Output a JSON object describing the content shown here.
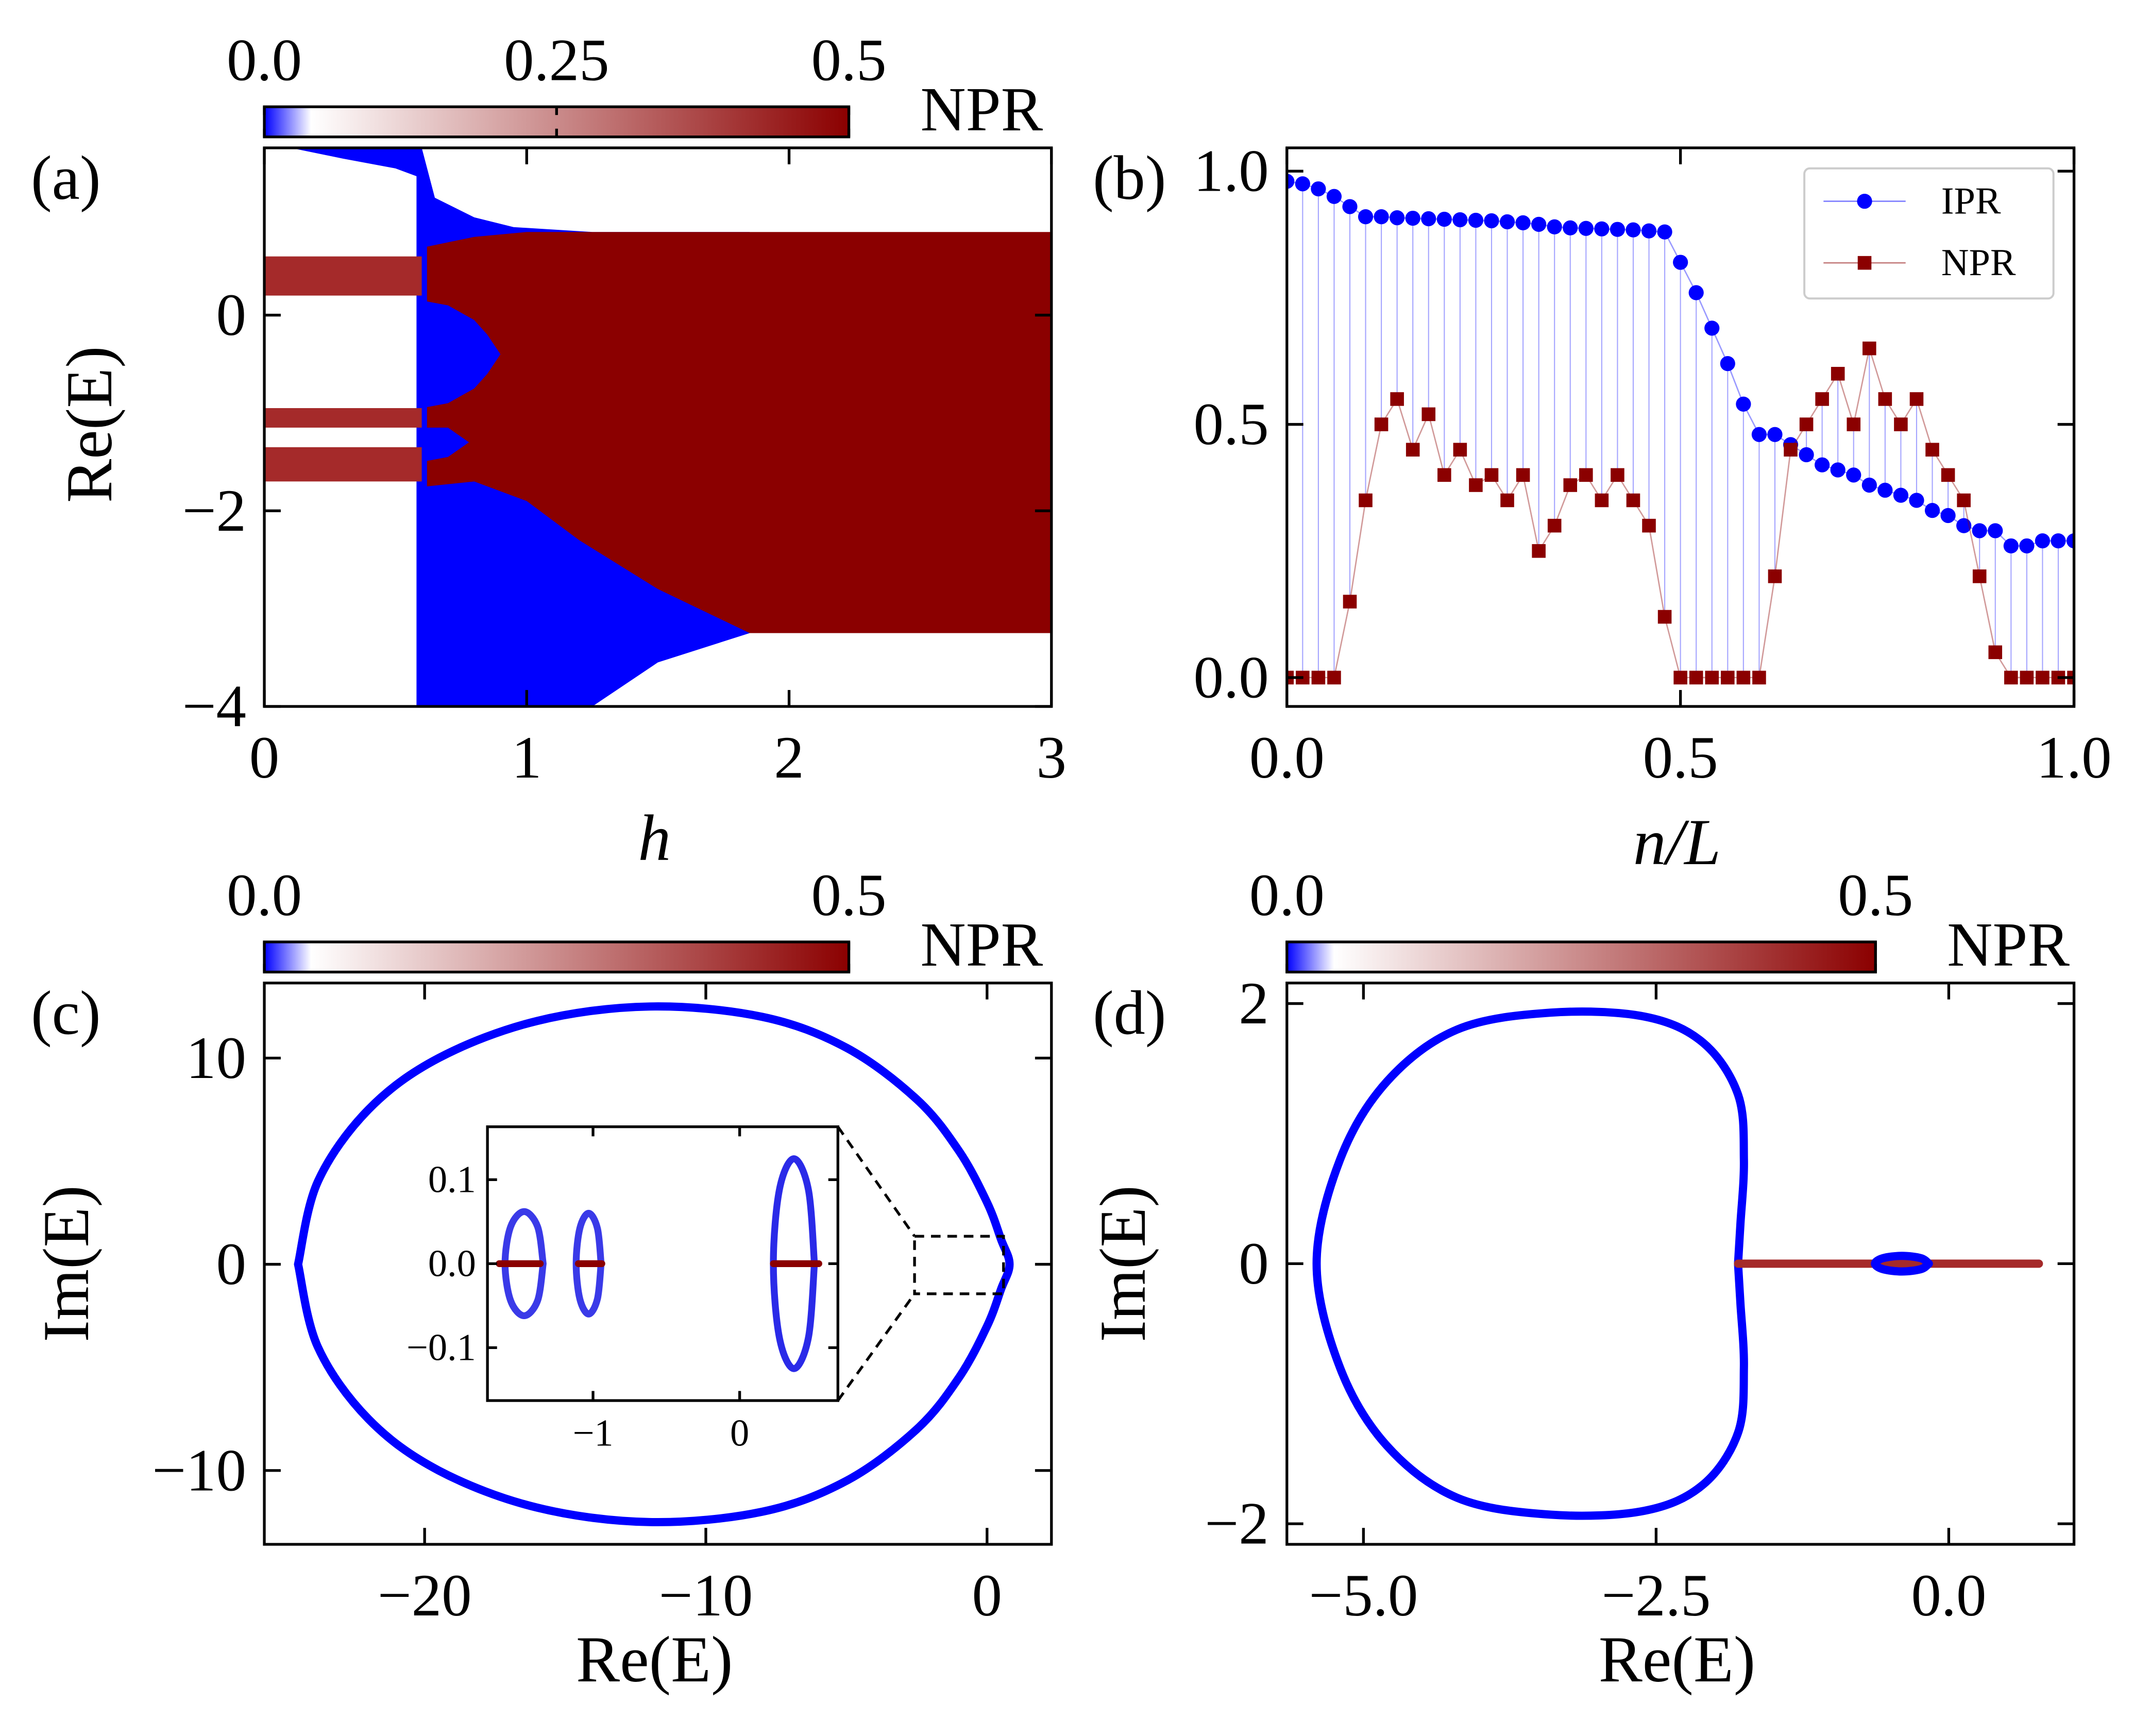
{
  "chart_data": [
    {
      "type": "region",
      "panel": "(a)",
      "xlabel": "h",
      "ylabel": "Re(E)",
      "xlim": [
        0,
        3
      ],
      "ylim": [
        -4,
        1.71
      ],
      "xticks": [
        0,
        1,
        2,
        3
      ],
      "yticks": [
        {
          "value": -4,
          "label": "−4"
        },
        {
          "value": -2,
          "label": "−2"
        },
        0
      ],
      "colorbar": {
        "label": "NPR",
        "lim": [
          0,
          0.5
        ],
        "ticks": [
          {
            "value": 0,
            "label": "0.0"
          },
          0.25,
          0.5
        ],
        "colormap": [
          {
            "value": 0,
            "color": "#0000ff"
          },
          {
            "value": 0.04,
            "color": "#ffffff"
          },
          {
            "value": 0.5,
            "color": "#8b0000"
          }
        ]
      },
      "regions": [
        {
          "color": "#0000ff",
          "x": [
            0.1,
            0.3,
            0.5,
            0.6
          ],
          "upper": [
            1.71,
            1.71,
            1.71,
            1.71
          ],
          "lower": [
            1.71,
            1.6,
            1.5,
            1.4
          ]
        },
        {
          "color": "#0000ff",
          "x": [
            0.58,
            0.6,
            0.65,
            0.8,
            0.95,
            1.25,
            1.5,
            1.85
          ],
          "upper": [
            1.71,
            1.71,
            1.2,
            1.0,
            0.9,
            0.85,
            0.85,
            0.85
          ],
          "lower": [
            -4,
            -4,
            -4,
            -4,
            -4,
            -4,
            -3.55,
            -3.25
          ]
        },
        {
          "color": "#8b0000",
          "x": [
            0.62,
            0.8,
            1.0,
            1.2,
            1.5,
            1.85,
            3
          ],
          "upper": [
            0.7,
            0.8,
            0.85,
            0.85,
            0.85,
            0.85,
            0.85
          ],
          "lower": [
            -1.75,
            -1.7,
            -1.9,
            -2.3,
            -2.8,
            -3.25,
            -3.25
          ]
        },
        {
          "color": "#0000ff",
          "x": [
            0.6,
            0.7,
            0.8,
            0.85,
            0.9
          ],
          "upper": [
            0.15,
            0.1,
            -0.05,
            -0.2,
            -0.4
          ],
          "lower": [
            -0.95,
            -0.9,
            -0.75,
            -0.6,
            -0.4
          ]
        },
        {
          "color": "#0000ff",
          "x": [
            0.6,
            0.7,
            0.78
          ],
          "upper": [
            -1.15,
            -1.15,
            -1.3
          ],
          "lower": [
            -1.5,
            -1.45,
            -1.3
          ]
        },
        {
          "color": "#a52a2a",
          "x": [
            0,
            0.6
          ],
          "upper": [
            0.6,
            0.6
          ],
          "lower": [
            0.2,
            0.2
          ]
        },
        {
          "color": "#a52a2a",
          "x": [
            0,
            0.6
          ],
          "upper": [
            -0.95,
            -0.95
          ],
          "lower": [
            -1.15,
            -1.15
          ]
        },
        {
          "color": "#a52a2a",
          "x": [
            0,
            0.6
          ],
          "upper": [
            -1.35,
            -1.35
          ],
          "lower": [
            -1.7,
            -1.7
          ]
        }
      ]
    },
    {
      "type": "line",
      "panel": "(b)",
      "xlabel": "n/L",
      "legend": "upper right",
      "xlim": [
        0,
        1
      ],
      "ylim": [
        -0.057,
        1.046
      ],
      "xticks": [
        {
          "value": 0,
          "label": "0.0"
        },
        0.5,
        {
          "value": 1,
          "label": "1.0"
        }
      ],
      "yticks": [
        {
          "value": 0,
          "label": "0.0"
        },
        0.5,
        {
          "value": 1,
          "label": "1.0"
        }
      ],
      "x": [
        0,
        0.02,
        0.04,
        0.06,
        0.08,
        0.1,
        0.12,
        0.14,
        0.16,
        0.18,
        0.2,
        0.22,
        0.24,
        0.26,
        0.28,
        0.3,
        0.32,
        0.34,
        0.36,
        0.38,
        0.4,
        0.42,
        0.44,
        0.46,
        0.48,
        0.5,
        0.52,
        0.54,
        0.56,
        0.58,
        0.6,
        0.62,
        0.64,
        0.66,
        0.68,
        0.7,
        0.72,
        0.74,
        0.76,
        0.78,
        0.8,
        0.82,
        0.84,
        0.86,
        0.88,
        0.9,
        0.92,
        0.94,
        0.96,
        0.98,
        1.0
      ],
      "series": [
        {
          "name": "IPR",
          "color": "#0000ff",
          "marker": "circle",
          "values": [
            0.98,
            0.975,
            0.965,
            0.95,
            0.93,
            0.91,
            0.91,
            0.908,
            0.907,
            0.906,
            0.905,
            0.904,
            0.903,
            0.902,
            0.9,
            0.898,
            0.895,
            0.89,
            0.888,
            0.887,
            0.886,
            0.885,
            0.884,
            0.882,
            0.88,
            0.82,
            0.76,
            0.69,
            0.62,
            0.54,
            0.48,
            0.48,
            0.46,
            0.44,
            0.42,
            0.41,
            0.4,
            0.38,
            0.37,
            0.36,
            0.35,
            0.33,
            0.32,
            0.3,
            0.29,
            0.29,
            0.26,
            0.26,
            0.27,
            0.27,
            0.27
          ]
        },
        {
          "name": "NPR",
          "color": "#8b0000",
          "marker": "square",
          "values": [
            0,
            0,
            0,
            0,
            0.15,
            0.35,
            0.5,
            0.55,
            0.45,
            0.52,
            0.4,
            0.45,
            0.38,
            0.4,
            0.35,
            0.4,
            0.25,
            0.3,
            0.38,
            0.4,
            0.35,
            0.4,
            0.35,
            0.3,
            0.12,
            0,
            0,
            0,
            0,
            0,
            0,
            0.2,
            0.45,
            0.5,
            0.55,
            0.6,
            0.5,
            0.65,
            0.55,
            0.5,
            0.55,
            0.45,
            0.4,
            0.35,
            0.2,
            0.05,
            0,
            0,
            0,
            0,
            0
          ]
        }
      ]
    },
    {
      "type": "loop",
      "panel": "(c)",
      "xlabel": "Re(E)",
      "ylabel": "Im(E)",
      "xlim": [
        -25.7,
        2.29
      ],
      "ylim": [
        -13.58,
        13.64
      ],
      "xticks": [
        {
          "value": -20,
          "label": "−20"
        },
        {
          "value": -10,
          "label": "−10"
        },
        0
      ],
      "yticks": [
        {
          "value": -10,
          "label": "−10"
        },
        0,
        10
      ],
      "colorbar": {
        "label": "NPR",
        "lim": [
          0,
          0.5
        ],
        "ticks": [
          {
            "value": 0,
            "label": "0.0"
          },
          0.5
        ],
        "colormap": [
          {
            "value": 0,
            "color": "#0000ff"
          },
          {
            "value": 0.04,
            "color": "#ffffff"
          },
          {
            "value": 0.5,
            "color": "#8b0000"
          }
        ]
      },
      "series": [
        {
          "color": "#0000ff",
          "x": [
            -24.5,
            -23.8,
            -22,
            -19.5,
            -16,
            -12,
            -8,
            -5,
            -2.5,
            -1,
            0,
            0.5,
            0.8,
            0.5,
            0,
            -1,
            -2.5,
            -5,
            -8,
            -12,
            -16,
            -19.5,
            -22,
            -23.8,
            -24.5
          ],
          "y": [
            0,
            4,
            7.5,
            10,
            11.8,
            12.5,
            12,
            10.5,
            8,
            5.5,
            3,
            1.2,
            0,
            -1.2,
            -3,
            -5.5,
            -8,
            -10.5,
            -12,
            -12.5,
            -11.8,
            -10,
            -7.5,
            -4,
            0
          ]
        }
      ],
      "inset": {
        "xlim": [
          -1.72,
          0.67
        ],
        "ylim": [
          -0.163,
          0.163
        ],
        "xticks": [
          {
            "value": -1,
            "label": "−1"
          },
          0
        ],
        "yticks": [
          {
            "value": -0.1,
            "label": "−0.1"
          },
          {
            "value": 0,
            "label": "0.0"
          },
          0.1
        ],
        "series": [
          {
            "color": "#3a3ae8",
            "x": [
              -1.34,
              -1.378,
              -1.47,
              -1.562,
              -1.6,
              -1.562,
              -1.47,
              -1.378,
              -1.34
            ],
            "y": [
              0,
              0.044,
              0.062,
              0.044,
              0,
              -0.044,
              -0.062,
              -0.044,
              0
            ]
          },
          {
            "color": "#3a3ae8",
            "x": [
              -0.945,
              -0.97,
              -1.03,
              -1.09,
              -1.115,
              -1.09,
              -1.03,
              -0.97,
              -0.945
            ],
            "y": [
              0,
              0.042,
              0.06,
              0.042,
              0,
              -0.042,
              -0.06,
              -0.042,
              0
            ]
          },
          {
            "color": "#2a2ae8",
            "x": [
              0.51,
              0.469,
              0.37,
              0.271,
              0.23,
              0.271,
              0.37,
              0.469,
              0.51
            ],
            "y": [
              0,
              0.088,
              0.125,
              0.088,
              0,
              -0.088,
              -0.125,
              -0.088,
              0
            ]
          },
          {
            "color": "#8b0000",
            "x": [
              -1.64,
              -1.36
            ],
            "y": [
              0,
              0
            ]
          },
          {
            "color": "#8b0000",
            "x": [
              -1.1,
              -0.94
            ],
            "y": [
              0,
              0
            ]
          },
          {
            "color": "#8b0000",
            "x": [
              0.23,
              0.54
            ],
            "y": [
              0,
              0
            ]
          }
        ]
      }
    },
    {
      "type": "loop",
      "panel": "(d)",
      "xlabel": "Re(E)",
      "ylabel": "Im(E)",
      "xlim": [
        -5.654,
        1.07
      ],
      "ylim": [
        -2.158,
        2.158
      ],
      "xticks": [
        {
          "value": -5,
          "label": "−5.0"
        },
        {
          "value": -2.5,
          "label": "−2.5"
        },
        {
          "value": 0,
          "label": "0.0"
        }
      ],
      "yticks": [
        {
          "value": -2,
          "label": "−2"
        },
        0,
        2
      ],
      "colorbar": {
        "label": "NPR",
        "lim": [
          0,
          0.5
        ],
        "ticks": [
          {
            "value": 0,
            "label": "0.0"
          },
          0.5
        ],
        "colormap": [
          {
            "value": 0,
            "color": "#0000ff"
          },
          {
            "value": 0.04,
            "color": "#ffffff"
          },
          {
            "value": 0.5,
            "color": "#8b0000"
          }
        ]
      },
      "series": [
        {
          "color": "#0000ff",
          "x": [
            -1.8,
            -1.78,
            -1.75,
            -1.8,
            -2.1,
            -2.6,
            -3.4,
            -4.2,
            -4.8,
            -5.2,
            -5.4,
            -5.2,
            -4.8,
            -4.2,
            -3.4,
            -2.6,
            -2.1,
            -1.8,
            -1.75,
            -1.78,
            -1.8
          ],
          "y": [
            0,
            0.3,
            0.8,
            1.3,
            1.7,
            1.9,
            1.93,
            1.8,
            1.4,
            0.8,
            0,
            -0.8,
            -1.4,
            -1.8,
            -1.93,
            -1.9,
            -1.7,
            -1.3,
            -0.8,
            -0.3,
            0
          ]
        },
        {
          "color": "#a52a2a",
          "x": [
            -1.8,
            0.77
          ],
          "y": [
            0,
            0
          ]
        },
        {
          "color": "#0000ff",
          "x": [
            -0.17,
            -0.237,
            -0.4,
            -0.563,
            -0.63,
            -0.563,
            -0.4,
            -0.237,
            -0.17
          ],
          "y": [
            0,
            0.042,
            0.06,
            0.042,
            0,
            -0.042,
            -0.06,
            -0.042,
            0
          ]
        }
      ]
    }
  ]
}
